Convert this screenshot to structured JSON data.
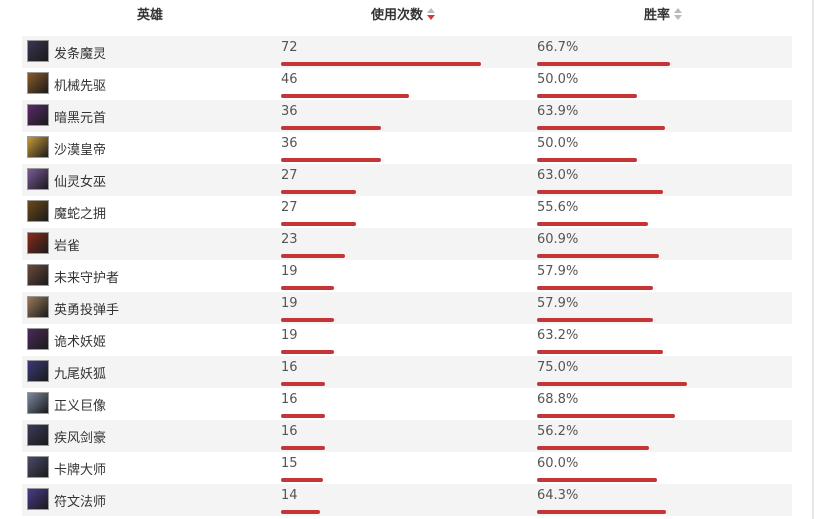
{
  "header": {
    "hero_label": "英雄",
    "usage_label": "使用次数",
    "winrate_label": "胜率"
  },
  "scale": {
    "usage_max": 72,
    "winrate_max": 75.0
  },
  "rows": [
    {
      "name": "发条魔灵",
      "usage": "72",
      "usage_value": 72,
      "winrate": "66.7%",
      "winrate_value": 66.7,
      "avatar_color": "#3a3550",
      "avatar_icon": "clockwork-portrait-icon"
    },
    {
      "name": "机械先驱",
      "usage": "46",
      "usage_value": 46,
      "winrate": "50.0%",
      "winrate_value": 50.0,
      "avatar_color": "#8a5a2a",
      "avatar_icon": "mech-portrait-icon"
    },
    {
      "name": "暗黑元首",
      "usage": "36",
      "usage_value": 36,
      "winrate": "63.9%",
      "winrate_value": 63.9,
      "avatar_color": "#5a2a6a",
      "avatar_icon": "dark-sovereign-portrait-icon"
    },
    {
      "name": "沙漠皇帝",
      "usage": "36",
      "usage_value": 36,
      "winrate": "50.0%",
      "winrate_value": 50.0,
      "avatar_color": "#c89a3a",
      "avatar_icon": "desert-emperor-portrait-icon"
    },
    {
      "name": "仙灵女巫",
      "usage": "27",
      "usage_value": 27,
      "winrate": "63.0%",
      "winrate_value": 63.0,
      "avatar_color": "#7a5a9a",
      "avatar_icon": "fae-sorceress-portrait-icon"
    },
    {
      "name": "魔蛇之拥",
      "usage": "27",
      "usage_value": 27,
      "winrate": "55.6%",
      "winrate_value": 55.6,
      "avatar_color": "#6a4a1a",
      "avatar_icon": "serpent-portrait-icon"
    },
    {
      "name": "岩雀",
      "usage": "23",
      "usage_value": 23,
      "winrate": "60.9%",
      "winrate_value": 60.9,
      "avatar_color": "#8a2a1a",
      "avatar_icon": "rock-weaver-portrait-icon"
    },
    {
      "name": "未来守护者",
      "usage": "19",
      "usage_value": 19,
      "winrate": "57.9%",
      "winrate_value": 57.9,
      "avatar_color": "#6a4a3a",
      "avatar_icon": "future-guardian-portrait-icon"
    },
    {
      "name": "英勇投弹手",
      "usage": "19",
      "usage_value": 19,
      "winrate": "57.9%",
      "winrate_value": 57.9,
      "avatar_color": "#9a7a5a",
      "avatar_icon": "bomber-portrait-icon"
    },
    {
      "name": "诡术妖姬",
      "usage": "19",
      "usage_value": 19,
      "winrate": "63.2%",
      "winrate_value": 63.2,
      "avatar_color": "#4a2a5a",
      "avatar_icon": "deceiver-portrait-icon"
    },
    {
      "name": "九尾妖狐",
      "usage": "16",
      "usage_value": 16,
      "winrate": "75.0%",
      "winrate_value": 75.0,
      "avatar_color": "#3a3a7a",
      "avatar_icon": "nine-tailed-fox-portrait-icon"
    },
    {
      "name": "正义巨像",
      "usage": "16",
      "usage_value": 16,
      "winrate": "68.8%",
      "winrate_value": 68.8,
      "avatar_color": "#7a8aa0",
      "avatar_icon": "colossus-portrait-icon"
    },
    {
      "name": "疾风剑豪",
      "usage": "16",
      "usage_value": 16,
      "winrate": "56.2%",
      "winrate_value": 56.2,
      "avatar_color": "#3a3a5a",
      "avatar_icon": "swordsman-portrait-icon"
    },
    {
      "name": "卡牌大师",
      "usage": "15",
      "usage_value": 15,
      "winrate": "60.0%",
      "winrate_value": 60.0,
      "avatar_color": "#4a4a6a",
      "avatar_icon": "card-master-portrait-icon"
    },
    {
      "name": "符文法师",
      "usage": "14",
      "usage_value": 14,
      "winrate": "64.3%",
      "winrate_value": 64.3,
      "avatar_color": "#4a3a8a",
      "avatar_icon": "rune-mage-portrait-icon"
    }
  ]
}
